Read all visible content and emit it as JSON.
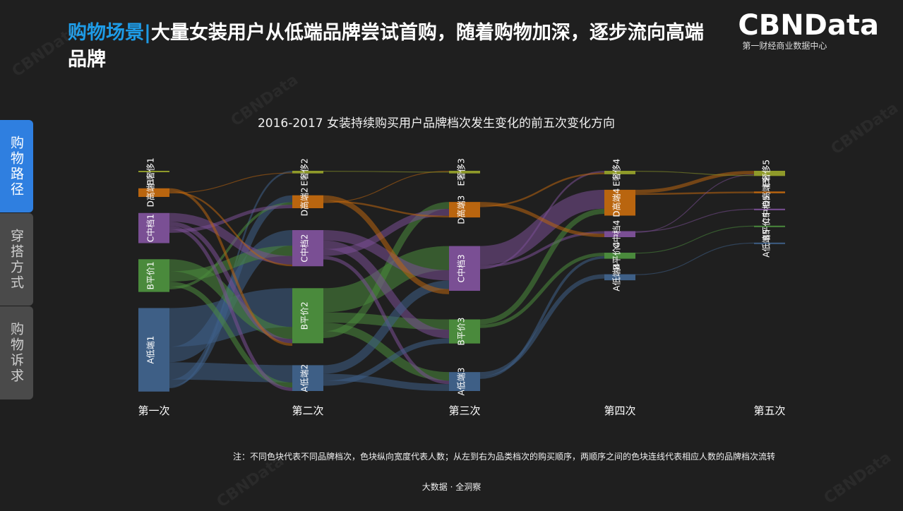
{
  "header": {
    "title_highlight": "购物场景|",
    "title_rest": "大量女装用户从低端品牌尝试首购，随着购物加深，逐步流向高端品牌",
    "logo_text": "CBNData",
    "logo_sub": "第一财经商业数据中心"
  },
  "sidebar": [
    {
      "label": "购物路径",
      "active": true
    },
    {
      "label": "穿搭方式",
      "active": false
    },
    {
      "label": "购物诉求",
      "active": false
    }
  ],
  "chart_data": {
    "type": "sankey",
    "title": "2016-2017 女装持续购买用户品牌档次发生变化的前五次变化方向",
    "stages": [
      "第一次",
      "第二次",
      "第三次",
      "第四次",
      "第五次"
    ],
    "categories": [
      "A低端",
      "B平价",
      "C中档",
      "D高端",
      "E奢侈"
    ],
    "colors": {
      "A低端": "#3e5f86",
      "B平价": "#4a8a3c",
      "C中档": "#7a4f94",
      "D高端": "#b9650f",
      "E奢侈": "#8f9a2a"
    },
    "nodes": [
      {
        "stage": 0,
        "cat": "E奢侈",
        "label": "E奢侈1",
        "value": 1
      },
      {
        "stage": 0,
        "cat": "D高端",
        "label": "D高端1",
        "value": 10
      },
      {
        "stage": 0,
        "cat": "C中档",
        "label": "C中档1",
        "value": 35
      },
      {
        "stage": 0,
        "cat": "B平价",
        "label": "B平价1",
        "value": 38
      },
      {
        "stage": 0,
        "cat": "A低端",
        "label": "A低端1",
        "value": 97
      },
      {
        "stage": 1,
        "cat": "E奢侈",
        "label": "E奢侈2",
        "value": 3
      },
      {
        "stage": 1,
        "cat": "D高端",
        "label": "D高端2",
        "value": 15
      },
      {
        "stage": 1,
        "cat": "C中档",
        "label": "C中档2",
        "value": 42
      },
      {
        "stage": 1,
        "cat": "B平价",
        "label": "B平价2",
        "value": 64
      },
      {
        "stage": 1,
        "cat": "A低端",
        "label": "A低端2",
        "value": 30
      },
      {
        "stage": 2,
        "cat": "E奢侈",
        "label": "E奢侈3",
        "value": 3
      },
      {
        "stage": 2,
        "cat": "D高端",
        "label": "D高端3",
        "value": 18
      },
      {
        "stage": 2,
        "cat": "C中档",
        "label": "C中档3",
        "value": 52
      },
      {
        "stage": 2,
        "cat": "B平价",
        "label": "B平价3",
        "value": 28
      },
      {
        "stage": 2,
        "cat": "A低端",
        "label": "A低端3",
        "value": 22
      },
      {
        "stage": 3,
        "cat": "E奢侈",
        "label": "E奢侈4",
        "value": 4
      },
      {
        "stage": 3,
        "cat": "D高端",
        "label": "D高端4",
        "value": 30
      },
      {
        "stage": 3,
        "cat": "C中档",
        "label": "C中档4",
        "value": 7
      },
      {
        "stage": 3,
        "cat": "B平价",
        "label": "B平价4",
        "value": 7
      },
      {
        "stage": 3,
        "cat": "A低端",
        "label": "A低端4",
        "value": 7
      },
      {
        "stage": 4,
        "cat": "E奢侈",
        "label": "E奢侈5",
        "value": 6
      },
      {
        "stage": 4,
        "cat": "D高端",
        "label": "D高端5",
        "value": 2
      },
      {
        "stage": 4,
        "cat": "C中档",
        "label": "C中档5",
        "value": 1
      },
      {
        "stage": 4,
        "cat": "B平价",
        "label": "B平价5",
        "value": 1
      },
      {
        "stage": 4,
        "cat": "A低端",
        "label": "A低端5",
        "value": 1
      }
    ],
    "flows": [
      {
        "from": "A低端1",
        "to": "B平价2",
        "value": 45
      },
      {
        "from": "A低端1",
        "to": "C中档2",
        "value": 18
      },
      {
        "from": "A低端1",
        "to": "A低端2",
        "value": 20
      },
      {
        "from": "A低端1",
        "to": "D高端2",
        "value": 8
      },
      {
        "from": "A低端1",
        "to": "E奢侈2",
        "value": 2
      },
      {
        "from": "B平价1",
        "to": "B平价2",
        "value": 14
      },
      {
        "from": "B平价1",
        "to": "C中档2",
        "value": 12
      },
      {
        "from": "B平价1",
        "to": "A低端2",
        "value": 6
      },
      {
        "from": "B平价1",
        "to": "D高端2",
        "value": 3
      },
      {
        "from": "C中档1",
        "to": "C中档2",
        "value": 10
      },
      {
        "from": "C中档1",
        "to": "B平价2",
        "value": 5
      },
      {
        "from": "C中档1",
        "to": "A低端2",
        "value": 4
      },
      {
        "from": "C中档1",
        "to": "D高端2",
        "value": 4
      },
      {
        "from": "D高端1",
        "to": "B平价2",
        "value": 3
      },
      {
        "from": "D高端1",
        "to": "C中档2",
        "value": 2
      },
      {
        "from": "D高端1",
        "to": "E奢侈2",
        "value": 1
      },
      {
        "from": "B平价2",
        "to": "C中档3",
        "value": 28
      },
      {
        "from": "B平价2",
        "to": "B平价3",
        "value": 12
      },
      {
        "from": "B平价2",
        "to": "A低端3",
        "value": 10
      },
      {
        "from": "B平价2",
        "to": "D高端3",
        "value": 8
      },
      {
        "from": "C中档2",
        "to": "C中档3",
        "value": 12
      },
      {
        "from": "C中档2",
        "to": "B平价3",
        "value": 10
      },
      {
        "from": "C中档2",
        "to": "D高端3",
        "value": 8
      },
      {
        "from": "C中档2",
        "to": "A低端3",
        "value": 4
      },
      {
        "from": "A低端2",
        "to": "C中档3",
        "value": 10
      },
      {
        "from": "A低端2",
        "to": "A低端3",
        "value": 8
      },
      {
        "from": "A低端2",
        "to": "B平价3",
        "value": 6
      },
      {
        "from": "D高端2",
        "to": "C中档3",
        "value": 6
      },
      {
        "from": "D高端2",
        "to": "D高端3",
        "value": 2
      },
      {
        "from": "D高端2",
        "to": "E奢侈3",
        "value": 1
      },
      {
        "from": "E奢侈2",
        "to": "E奢侈3",
        "value": 1
      },
      {
        "from": "C中档3",
        "to": "D高端4",
        "value": 22
      },
      {
        "from": "C中档3",
        "to": "C中档4",
        "value": 3
      },
      {
        "from": "C中档3",
        "to": "E奢侈4",
        "value": 2
      },
      {
        "from": "B平价3",
        "to": "D高端4",
        "value": 6
      },
      {
        "from": "B平价3",
        "to": "B平价4",
        "value": 4
      },
      {
        "from": "A低端3",
        "to": "A低端4",
        "value": 5
      },
      {
        "from": "A低端3",
        "to": "B平价4",
        "value": 3
      },
      {
        "from": "D高端3",
        "to": "C中档4",
        "value": 4
      },
      {
        "from": "D高端3",
        "to": "E奢侈4",
        "value": 2
      },
      {
        "from": "D高端4",
        "to": "E奢侈5",
        "value": 4
      },
      {
        "from": "D高端4",
        "to": "D高端5",
        "value": 2
      },
      {
        "from": "C中档4",
        "to": "C中档5",
        "value": 1
      },
      {
        "from": "C中档4",
        "to": "E奢侈5",
        "value": 1
      },
      {
        "from": "B平价4",
        "to": "B平价5",
        "value": 1
      },
      {
        "from": "A低端4",
        "to": "A低端5",
        "value": 1
      },
      {
        "from": "E奢侈4",
        "to": "E奢侈5",
        "value": 1
      }
    ]
  },
  "note": "注：不同色块代表不同品牌档次，色块纵向宽度代表人数；从左到右为品类档次的购买顺序，两顺序之间的色块连线代表相应人数的品牌档次流转",
  "footer": "大数据 · 全洞察",
  "watermark": "CBNData"
}
